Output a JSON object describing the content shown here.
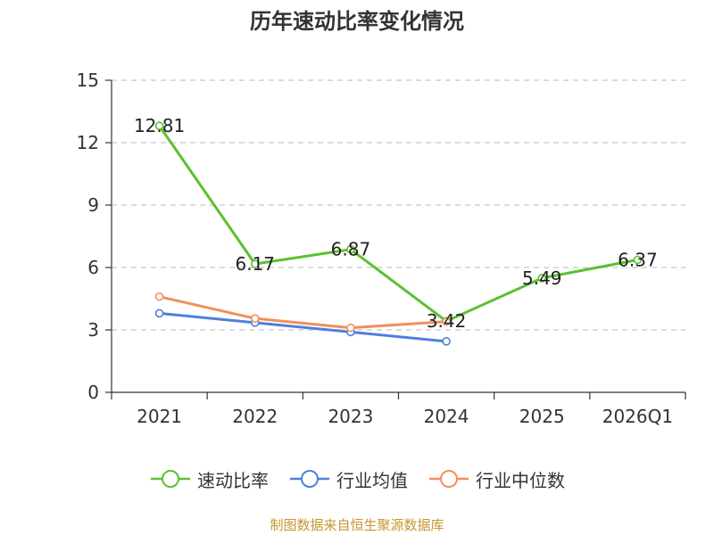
{
  "chart_data": {
    "type": "line",
    "title": "历年速动比率变化情况",
    "categories": [
      "2021",
      "2022",
      "2023",
      "2024",
      "2025",
      "2026Q1"
    ],
    "ylim": [
      0,
      15
    ],
    "yticks": [
      0,
      3,
      6,
      9,
      12,
      15
    ],
    "ytick_labels": [
      "0",
      "3",
      "6",
      "9",
      "12",
      "15"
    ],
    "grid": true,
    "legend_position": "bottom-center",
    "xlabel": "",
    "ylabel": "",
    "series": [
      {
        "name": "速动比率",
        "color": "#5cc02e",
        "values": [
          12.81,
          6.17,
          6.87,
          3.42,
          5.49,
          6.37
        ],
        "labels": [
          "12.81",
          "6.17",
          "6.87",
          "3.42",
          "5.49",
          "6.37"
        ]
      },
      {
        "name": "行业均值",
        "color": "#4f7fdc",
        "values": [
          3.8,
          3.35,
          2.9,
          2.45,
          null,
          null
        ]
      },
      {
        "name": "行业中位数",
        "color": "#f28f5c",
        "values": [
          4.6,
          3.55,
          3.1,
          3.4,
          null,
          null
        ]
      }
    ]
  },
  "source_note": "制图数据来自恒生聚源数据库"
}
